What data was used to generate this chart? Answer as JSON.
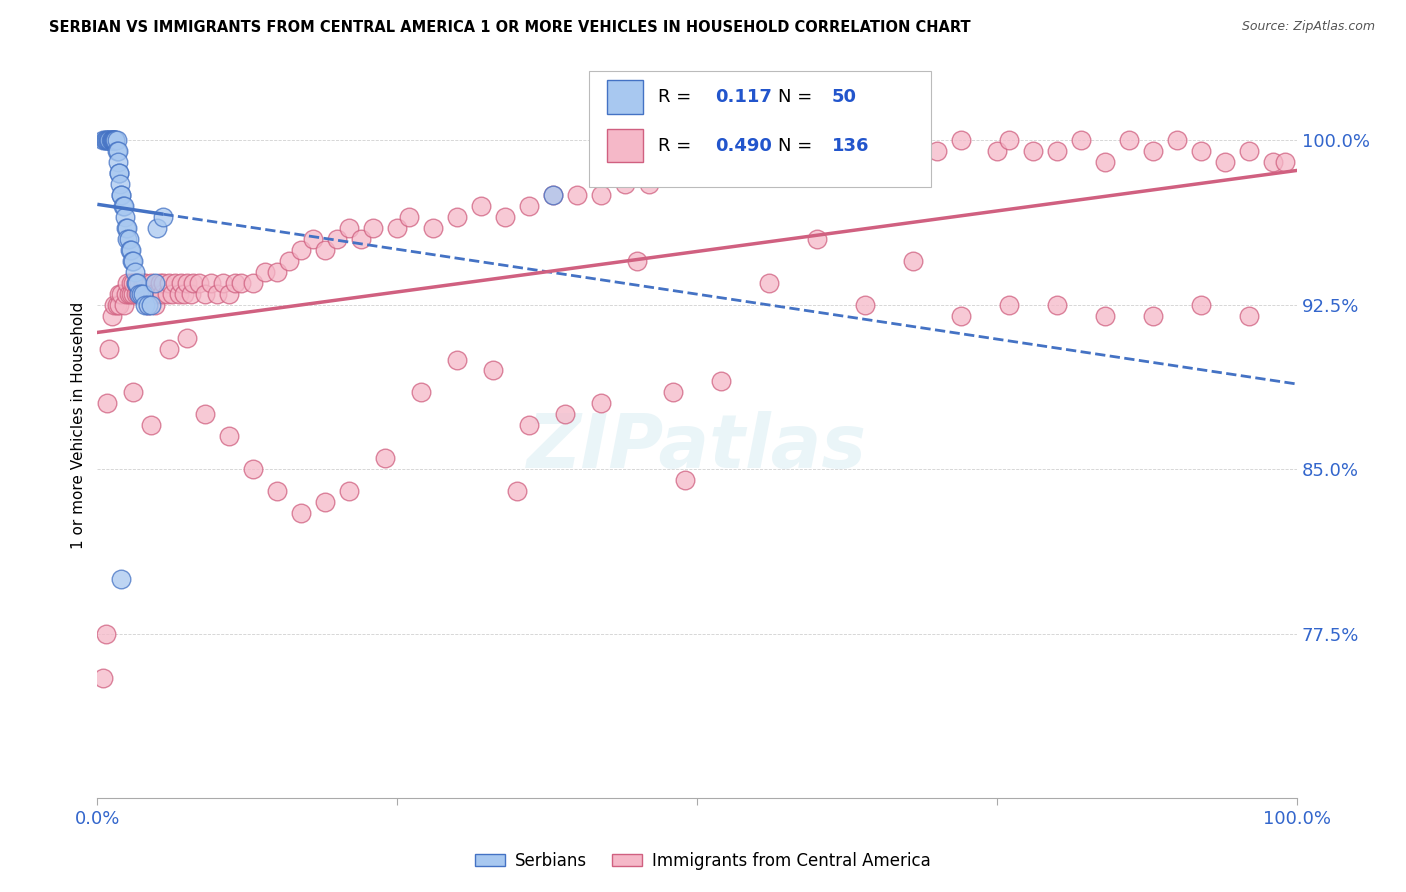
{
  "title": "SERBIAN VS IMMIGRANTS FROM CENTRAL AMERICA 1 OR MORE VEHICLES IN HOUSEHOLD CORRELATION CHART",
  "source": "Source: ZipAtlas.com",
  "ylabel": "1 or more Vehicles in Household",
  "r_serbian": 0.117,
  "n_serbian": 50,
  "r_immigrant": 0.49,
  "n_immigrant": 136,
  "y_ticks": [
    77.5,
    85.0,
    92.5,
    100.0
  ],
  "x_min": 0.0,
  "x_max": 1.0,
  "y_min": 70.0,
  "y_max": 104.0,
  "blue_fill": "#A8C8F0",
  "blue_edge": "#4472C4",
  "pink_fill": "#F5B8C8",
  "pink_edge": "#D06080",
  "blue_line": "#4472C4",
  "pink_line": "#D06080",
  "serbian_x": [
    0.005,
    0.006,
    0.007,
    0.008,
    0.009,
    0.01,
    0.01,
    0.011,
    0.012,
    0.012,
    0.013,
    0.013,
    0.014,
    0.014,
    0.015,
    0.015,
    0.016,
    0.016,
    0.017,
    0.017,
    0.018,
    0.018,
    0.019,
    0.02,
    0.02,
    0.021,
    0.022,
    0.023,
    0.024,
    0.025,
    0.025,
    0.026,
    0.027,
    0.028,
    0.029,
    0.03,
    0.031,
    0.032,
    0.033,
    0.035,
    0.036,
    0.038,
    0.04,
    0.042,
    0.045,
    0.048,
    0.05,
    0.055,
    0.38,
    0.02
  ],
  "serbian_y": [
    100.0,
    100.0,
    100.0,
    100.0,
    100.0,
    100.0,
    100.0,
    100.0,
    100.0,
    100.0,
    100.0,
    100.0,
    100.0,
    100.0,
    100.0,
    100.0,
    100.0,
    99.5,
    99.5,
    99.0,
    98.5,
    98.5,
    98.0,
    97.5,
    97.5,
    97.0,
    97.0,
    96.5,
    96.0,
    96.0,
    95.5,
    95.5,
    95.0,
    95.0,
    94.5,
    94.5,
    94.0,
    93.5,
    93.5,
    93.0,
    93.0,
    93.0,
    92.5,
    92.5,
    92.5,
    93.5,
    96.0,
    96.5,
    97.5,
    80.0
  ],
  "immigrant_x": [
    0.005,
    0.007,
    0.008,
    0.01,
    0.012,
    0.014,
    0.016,
    0.018,
    0.018,
    0.02,
    0.022,
    0.024,
    0.025,
    0.026,
    0.028,
    0.028,
    0.03,
    0.03,
    0.032,
    0.032,
    0.034,
    0.035,
    0.036,
    0.038,
    0.04,
    0.04,
    0.042,
    0.044,
    0.045,
    0.046,
    0.048,
    0.05,
    0.052,
    0.054,
    0.055,
    0.058,
    0.06,
    0.062,
    0.065,
    0.068,
    0.07,
    0.072,
    0.075,
    0.078,
    0.08,
    0.085,
    0.09,
    0.095,
    0.1,
    0.105,
    0.11,
    0.115,
    0.12,
    0.13,
    0.14,
    0.15,
    0.16,
    0.17,
    0.18,
    0.19,
    0.2,
    0.21,
    0.22,
    0.23,
    0.25,
    0.26,
    0.28,
    0.3,
    0.32,
    0.34,
    0.36,
    0.38,
    0.4,
    0.42,
    0.44,
    0.46,
    0.48,
    0.5,
    0.52,
    0.55,
    0.56,
    0.58,
    0.6,
    0.62,
    0.64,
    0.65,
    0.68,
    0.7,
    0.72,
    0.75,
    0.76,
    0.78,
    0.8,
    0.82,
    0.84,
    0.86,
    0.88,
    0.9,
    0.92,
    0.94,
    0.96,
    0.98,
    0.99,
    0.03,
    0.045,
    0.06,
    0.075,
    0.09,
    0.11,
    0.13,
    0.15,
    0.17,
    0.19,
    0.21,
    0.24,
    0.27,
    0.3,
    0.33,
    0.36,
    0.39,
    0.42,
    0.45,
    0.48,
    0.52,
    0.56,
    0.6,
    0.64,
    0.68,
    0.72,
    0.76,
    0.8,
    0.84,
    0.88,
    0.92,
    0.96,
    0.35,
    0.49
  ],
  "immigrant_y": [
    75.5,
    77.5,
    88.0,
    90.5,
    92.0,
    92.5,
    92.5,
    93.0,
    92.5,
    93.0,
    92.5,
    93.0,
    93.5,
    93.0,
    93.5,
    93.0,
    93.0,
    93.5,
    93.0,
    93.5,
    93.0,
    93.5,
    93.0,
    93.5,
    93.0,
    93.5,
    92.5,
    93.0,
    93.5,
    93.0,
    92.5,
    93.0,
    93.5,
    93.0,
    93.5,
    93.0,
    93.5,
    93.0,
    93.5,
    93.0,
    93.5,
    93.0,
    93.5,
    93.0,
    93.5,
    93.5,
    93.0,
    93.5,
    93.0,
    93.5,
    93.0,
    93.5,
    93.5,
    93.5,
    94.0,
    94.0,
    94.5,
    95.0,
    95.5,
    95.0,
    95.5,
    96.0,
    95.5,
    96.0,
    96.0,
    96.5,
    96.0,
    96.5,
    97.0,
    96.5,
    97.0,
    97.5,
    97.5,
    97.5,
    98.0,
    98.0,
    98.5,
    98.5,
    99.0,
    99.0,
    99.5,
    99.5,
    99.5,
    99.5,
    100.0,
    99.5,
    100.0,
    99.5,
    100.0,
    99.5,
    100.0,
    99.5,
    99.5,
    100.0,
    99.0,
    100.0,
    99.5,
    100.0,
    99.5,
    99.0,
    99.5,
    99.0,
    99.0,
    88.5,
    87.0,
    90.5,
    91.0,
    87.5,
    86.5,
    85.0,
    84.0,
    83.0,
    83.5,
    84.0,
    85.5,
    88.5,
    90.0,
    89.5,
    87.0,
    87.5,
    88.0,
    94.5,
    88.5,
    89.0,
    93.5,
    95.5,
    92.5,
    94.5,
    92.0,
    92.5,
    92.5,
    92.0,
    92.0,
    92.5,
    92.0,
    84.0,
    84.5
  ]
}
